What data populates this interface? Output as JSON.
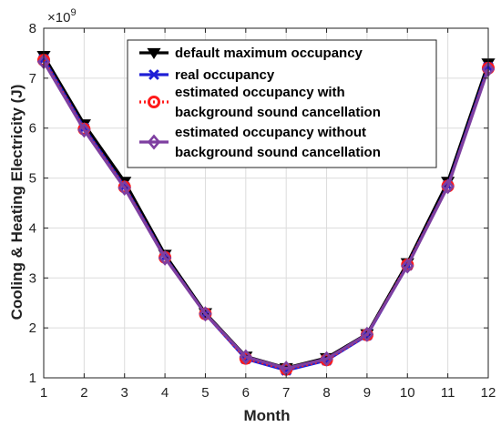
{
  "chart_data": {
    "type": "line",
    "xlabel": "Month",
    "ylabel": "Cooling & Heating Electricity (J)",
    "y_multiplier_label": "×10",
    "y_multiplier_exp": "9",
    "x": [
      1,
      2,
      3,
      4,
      5,
      6,
      7,
      8,
      9,
      10,
      11,
      12
    ],
    "xlim": [
      1,
      12
    ],
    "ylim": [
      1,
      8
    ],
    "yticks": [
      1,
      2,
      3,
      4,
      5,
      6,
      7,
      8
    ],
    "grid": true,
    "legend_position": "top-right",
    "series": [
      {
        "name": "default maximum occupancy",
        "color": "#000000",
        "marker": "triangle-down-icon",
        "values": [
          7.45,
          6.08,
          4.93,
          3.47,
          2.3,
          1.43,
          1.2,
          1.4,
          1.88,
          3.3,
          4.93,
          7.3
        ]
      },
      {
        "name": "real occupancy",
        "color": "#1f1fd6",
        "marker": "cross-icon",
        "values": [
          7.38,
          6.0,
          4.83,
          3.42,
          2.28,
          1.38,
          1.15,
          1.35,
          1.85,
          3.25,
          4.85,
          7.22
        ]
      },
      {
        "name": "estimated occupancy with background sound cancellation",
        "legend_lines": [
          "estimated occupancy with",
          "background sound cancellation"
        ],
        "color": "#ff1a1a",
        "marker": "circle-icon",
        "values": [
          7.36,
          5.98,
          4.82,
          3.41,
          2.28,
          1.39,
          1.17,
          1.36,
          1.86,
          3.26,
          4.84,
          7.2
        ]
      },
      {
        "name": "estimated occupancy without background  sound cancellation",
        "legend_lines": [
          "estimated occupancy without",
          "background  sound cancellation"
        ],
        "color": "#7e3fa0",
        "marker": "diamond-icon",
        "values": [
          7.33,
          5.96,
          4.8,
          3.4,
          2.28,
          1.42,
          1.19,
          1.38,
          1.87,
          3.24,
          4.83,
          7.18
        ]
      }
    ]
  }
}
